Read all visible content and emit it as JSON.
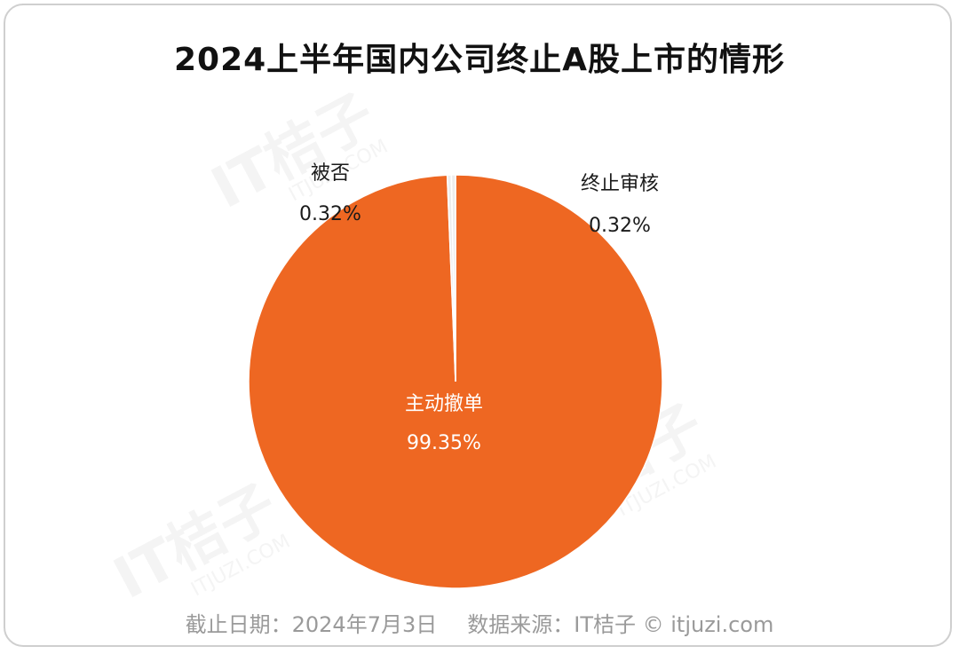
{
  "title": "2024上半年国内公司终止A股上市的情形",
  "footer": {
    "date_text": "截止日期：2024年7月3日",
    "source_text": "数据来源：IT桔子 © itjuzi.com"
  },
  "watermark": {
    "brand": "IT桔子",
    "url": "ITJUZI.COM"
  },
  "colors": {
    "main_slice": "#EE6722",
    "small_slice": "#EDEDED",
    "label_dark": "#1a1a1a",
    "label_light": "#ffffff"
  },
  "chart_data": {
    "type": "pie",
    "title": "2024上半年国内公司终止A股上市的情形",
    "slices": [
      {
        "label": "主动撤单",
        "value": 99.35,
        "value_text": "99.35%"
      },
      {
        "label": "被否",
        "value": 0.32,
        "value_text": "0.32%"
      },
      {
        "label": "终止审核",
        "value": 0.32,
        "value_text": "0.32%"
      }
    ]
  }
}
